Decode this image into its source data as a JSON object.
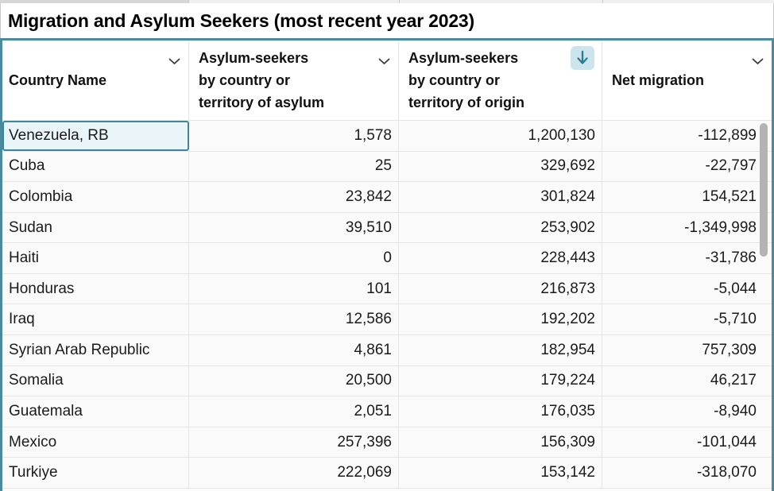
{
  "title": "Migration and Asylum Seekers (most recent year 2023)",
  "colors": {
    "table_border_teal": "#4a8a9c",
    "selected_cell_border": "#3f8698",
    "selected_cell_bg": "#e9f5f9",
    "sort_icon_bg": "#cce4ec",
    "sort_icon_arrow": "#2e7e93",
    "grid_line": "#e5e5e5",
    "scrollbar_thumb": "#b3b3b3",
    "header_bg": "#ffffff",
    "row_bg": "#fafafa",
    "text": "#1b1b1b"
  },
  "table": {
    "columns": [
      {
        "id": "country-name",
        "label": "Country Name",
        "label_lines": [
          "Country Name"
        ],
        "align": "left",
        "menu_icon": "chevron-down",
        "sorted": false
      },
      {
        "id": "asylum-seekers-by-asylum",
        "label": "Asylum-seekers by country or territory of asylum",
        "label_lines": [
          "Asylum-seekers",
          "by country or",
          "territory of asylum"
        ],
        "align": "right",
        "menu_icon": "chevron-down",
        "sorted": false
      },
      {
        "id": "asylum-seekers-by-origin",
        "label": "Asylum-seekers by country or territory of origin",
        "label_lines": [
          "Asylum-seekers",
          "by country or",
          "territory of origin"
        ],
        "align": "right",
        "menu_icon": "sort-descending-arrow",
        "sorted": true,
        "sort_direction": "descending"
      },
      {
        "id": "net-migration",
        "label": "Net migration",
        "label_lines": [
          "Net migration"
        ],
        "align": "right",
        "menu_icon": "chevron-down",
        "sorted": false
      }
    ],
    "rows": [
      {
        "cells": [
          "Venezuela, RB",
          "1,578",
          "1,200,130",
          "-112,899"
        ]
      },
      {
        "cells": [
          "Cuba",
          "25",
          "329,692",
          "-22,797"
        ]
      },
      {
        "cells": [
          "Colombia",
          "23,842",
          "301,824",
          "154,521"
        ]
      },
      {
        "cells": [
          "Sudan",
          "39,510",
          "253,902",
          "-1,349,998"
        ]
      },
      {
        "cells": [
          "Haiti",
          "0",
          "228,443",
          "-31,786"
        ]
      },
      {
        "cells": [
          "Honduras",
          "101",
          "216,873",
          "-5,044"
        ]
      },
      {
        "cells": [
          "Iraq",
          "12,586",
          "192,202",
          "-5,710"
        ]
      },
      {
        "cells": [
          "Syrian Arab Republic",
          "4,861",
          "182,954",
          "757,309"
        ]
      },
      {
        "cells": [
          "Somalia",
          "20,500",
          "179,224",
          "46,217"
        ]
      },
      {
        "cells": [
          "Guatemala",
          "2,051",
          "176,035",
          "-8,940"
        ]
      },
      {
        "cells": [
          "Mexico",
          "257,396",
          "156,309",
          "-101,044"
        ]
      },
      {
        "cells": [
          "Turkiye",
          "222,069",
          "153,142",
          "-318,070"
        ]
      }
    ],
    "selection": {
      "row_index": 0,
      "column_index": 0,
      "value": "Venezuela, RB"
    }
  },
  "scrollbar": {
    "orientation": "vertical",
    "visible": true
  }
}
